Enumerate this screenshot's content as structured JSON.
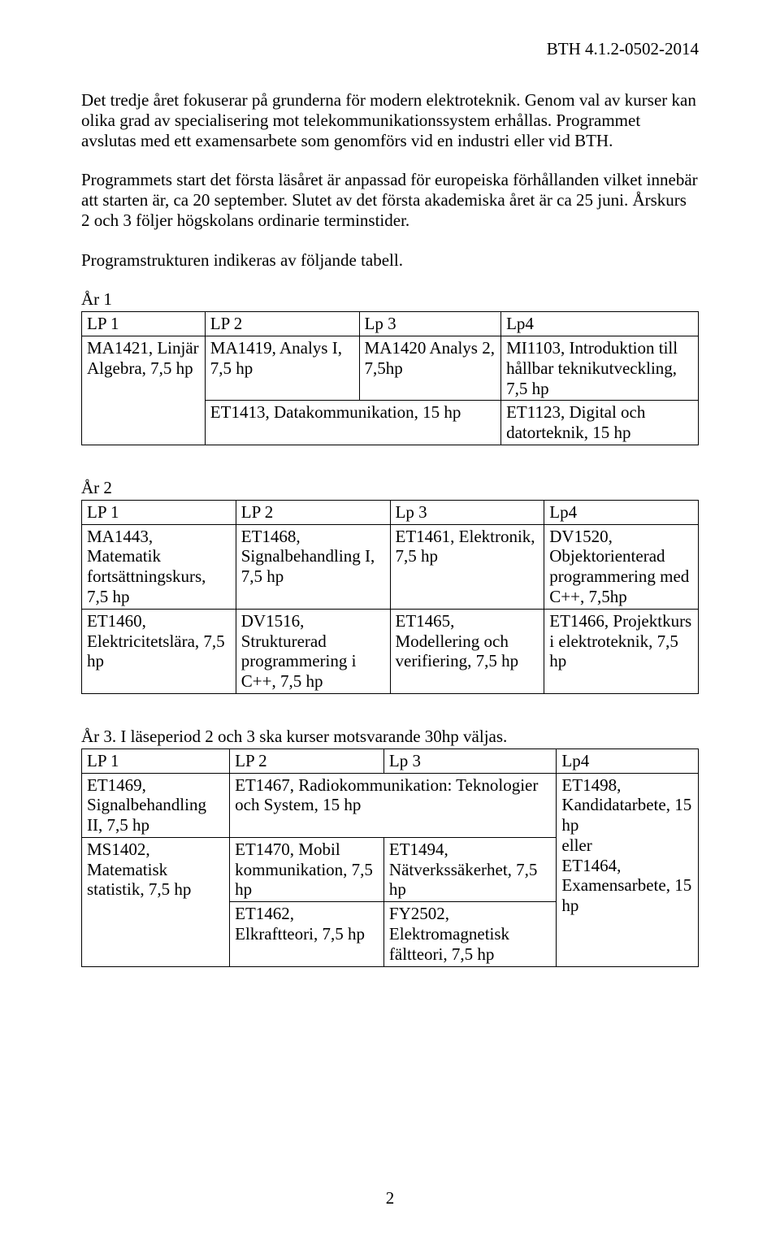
{
  "doc_id": "BTH 4.1.2-0502-2014",
  "paragraphs": {
    "p1": "Det tredje året fokuserar på grunderna för modern elektroteknik. Genom val av kurser kan olika grad av specialisering mot telekommunikationssystem erhållas. Programmet avslutas med ett examensarbete som genomförs vid en industri eller vid BTH.",
    "p2": "Programmets start det första läsåret är anpassad för europeiska förhållanden vilket innebär att starten är, ca 20 september. Slutet av det första akademiska året är ca 25 juni. Årskurs 2 och 3 följer högskolans ordinarie terminstider.",
    "p3": "Programstrukturen indikeras av följande tabell."
  },
  "year1": {
    "label": "År 1",
    "columns": [
      "LP 1",
      "LP 2",
      "Lp 3",
      "Lp4"
    ],
    "r1c1": "MA1421, Linjär Algebra, 7,5 hp",
    "r1c2": "MA1419, Analys I, 7,5 hp",
    "r1c3": "MA1420 Analys 2, 7,5hp",
    "r1c4": "MI1103, Introduktion till hållbar teknikutveckling, 7,5 hp",
    "r2c23": "ET1413, Datakommunikation, 15 hp",
    "r2c4": "ET1123, Digital och datorteknik, 15 hp"
  },
  "year2": {
    "label": "År 2",
    "columns": [
      "LP 1",
      "LP 2",
      "Lp 3",
      "Lp4"
    ],
    "r1c1": "MA1443, Matematik fortsättningskurs, 7,5 hp",
    "r1c2": "ET1468, Signalbehandling I, 7,5 hp",
    "r1c3": "ET1461, Elektronik, 7,5 hp",
    "r1c4": "DV1520, Objektorienterad programmering med C++, 7,5hp",
    "r2c1": "ET1460, Elektricitetslära, 7,5 hp",
    "r2c2": "DV1516, Strukturerad programmering i C++, 7,5 hp",
    "r2c3": "ET1465, Modellering och verifiering, 7,5 hp",
    "r2c4": "ET1466, Projektkurs i elektroteknik, 7,5 hp"
  },
  "year3": {
    "caption": "År 3. I läseperiod 2 och 3 ska kurser motsvarande 30hp väljas.",
    "columns": [
      "LP 1",
      "LP 2",
      "Lp 3",
      "Lp4"
    ],
    "r1c1": "ET1469, Signalbehandling II, 7,5 hp",
    "r1c23": "ET1467, Radiokommunikation: Teknologier och System, 15 hp",
    "r1c4": "ET1498, Kandidatarbete, 15 hp\neller\nET1464, Examensarbete, 15 hp",
    "r2c1": "MS1402, Matematisk statistik, 7,5 hp",
    "r2c2": "ET1470, Mobil kommunikation, 7,5 hp",
    "r2c3": "ET1494, Nätverkssäkerhet, 7,5 hp",
    "r3c2": "ET1462, Elkraftteori, 7,5 hp",
    "r3c3": "FY2502, Elektromagnetisk fältteori, 7,5 hp"
  },
  "page_number": "2",
  "colors": {
    "text": "#000000",
    "background": "#ffffff",
    "border": "#000000"
  },
  "fonts": {
    "family": "Times New Roman",
    "body_size_pt": 16
  }
}
